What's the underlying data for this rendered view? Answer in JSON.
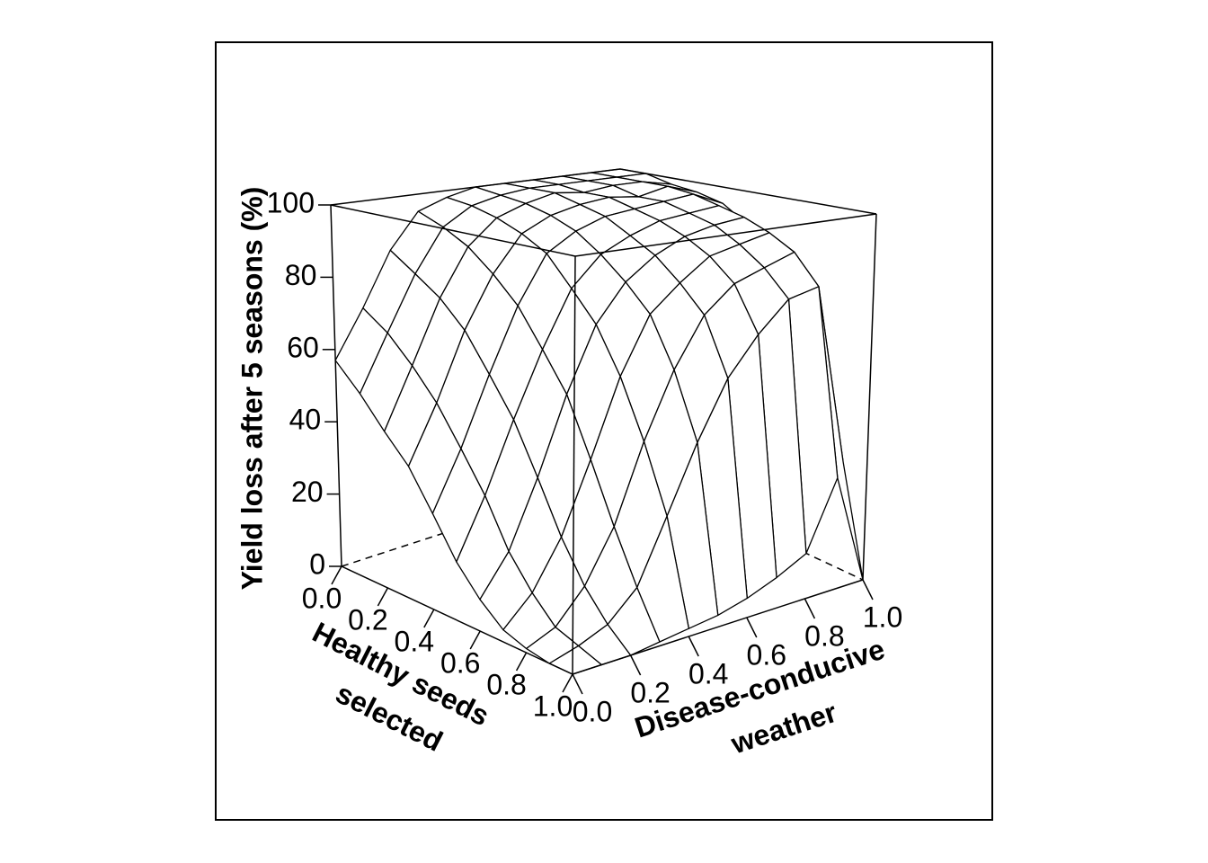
{
  "chart_data": {
    "type": "surface3d",
    "xlabel": [
      "Healthy seeds",
      "selected"
    ],
    "ylabel": [
      "Disease-conducive",
      "weather"
    ],
    "zlabel": "Yield loss after 5 seasons (%)",
    "x": [
      0,
      0.1,
      0.2,
      0.3,
      0.4,
      0.5,
      0.6,
      0.7,
      0.8,
      0.9,
      1
    ],
    "y": [
      0,
      0.1,
      0.2,
      0.3,
      0.4,
      0.5,
      0.6,
      0.7,
      0.8,
      0.9,
      1
    ],
    "z": [
      [
        57,
        70,
        85,
        95,
        98,
        100,
        100,
        100,
        100,
        100,
        100
      ],
      [
        50,
        65,
        80,
        92,
        97,
        99,
        100,
        100,
        100,
        100,
        100
      ],
      [
        42,
        58,
        75,
        88,
        95,
        98,
        100,
        99,
        100,
        100,
        98
      ],
      [
        35,
        50,
        68,
        82,
        92,
        96,
        98,
        99,
        98,
        100,
        97
      ],
      [
        25,
        40,
        58,
        75,
        88,
        93,
        96,
        97,
        98,
        99,
        95
      ],
      [
        15,
        30,
        48,
        65,
        80,
        88,
        92,
        95,
        96,
        97,
        90
      ],
      [
        8,
        18,
        35,
        55,
        72,
        82,
        88,
        92,
        94,
        95,
        85
      ],
      [
        3,
        10,
        22,
        40,
        60,
        75,
        82,
        88,
        90,
        92,
        75
      ],
      [
        1,
        4,
        12,
        25,
        45,
        62,
        75,
        82,
        85,
        88,
        55
      ],
      [
        0,
        2,
        5,
        12,
        28,
        45,
        60,
        70,
        78,
        80,
        30
      ],
      [
        0,
        0,
        0,
        1,
        2,
        3,
        5,
        8,
        12,
        30,
        0
      ]
    ],
    "xlim": [
      0,
      1
    ],
    "ylim": [
      0,
      1
    ],
    "zlim": [
      0,
      100
    ],
    "xticks": [
      {
        "value": 0,
        "label": "0.0"
      },
      {
        "value": 0.2,
        "label": "0.2"
      },
      {
        "value": 0.4,
        "label": "0.4"
      },
      {
        "value": 0.6,
        "label": "0.6"
      },
      {
        "value": 0.8,
        "label": "0.8"
      },
      {
        "value": 1,
        "label": "1.0"
      }
    ],
    "yticks": [
      {
        "value": 0,
        "label": "0.0"
      },
      {
        "value": 0.2,
        "label": "0.2"
      },
      {
        "value": 0.4,
        "label": "0.4"
      },
      {
        "value": 0.6,
        "label": "0.6"
      },
      {
        "value": 0.8,
        "label": "0.8"
      },
      {
        "value": 1,
        "label": "1.0"
      }
    ],
    "zticks": [
      0,
      20,
      40,
      60,
      80,
      100
    ],
    "color": "#ffffff",
    "line_color": "#000000"
  }
}
